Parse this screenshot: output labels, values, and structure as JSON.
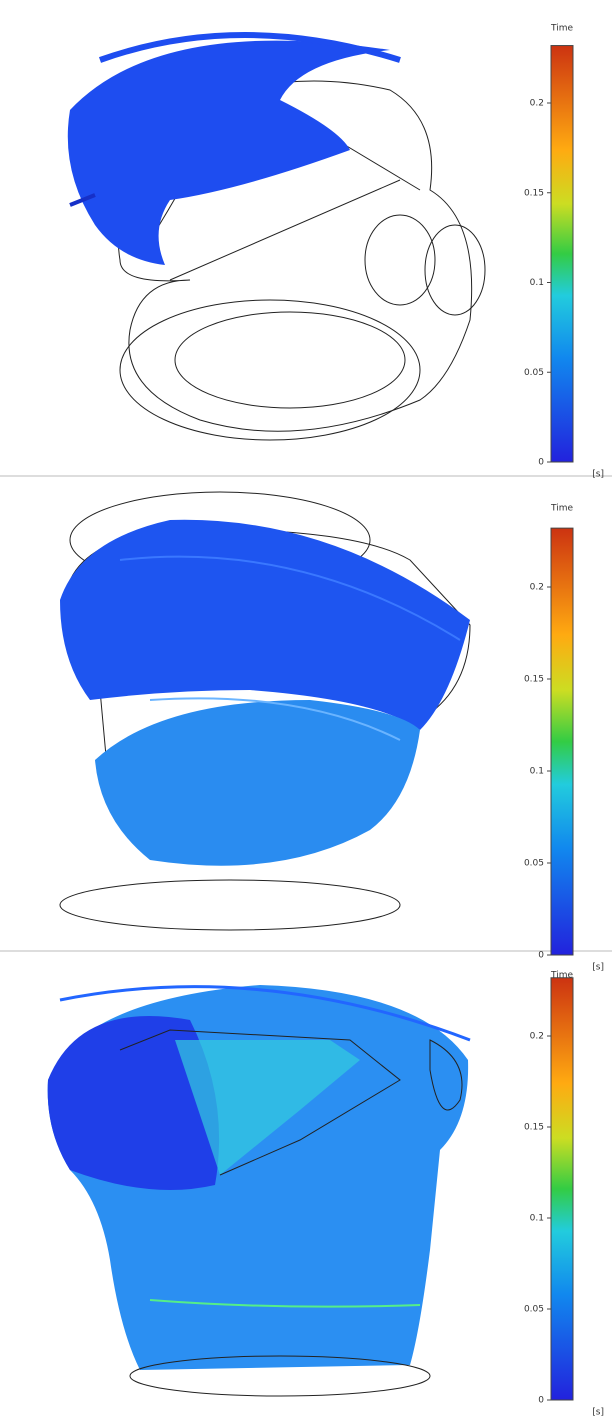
{
  "panels": [
    {
      "colorbar": {
        "title": "Time",
        "unit": "[s]",
        "range": [
          0,
          0.232
        ],
        "ticks": [
          0,
          0.05,
          0.1,
          0.15,
          0.2
        ]
      }
    },
    {
      "colorbar": {
        "title": "Time",
        "unit": "[s]",
        "range": [
          0,
          0.232
        ],
        "ticks": [
          0,
          0.05,
          0.1,
          0.15,
          0.2
        ]
      }
    },
    {
      "colorbar": {
        "title": "Time",
        "unit": "[s]",
        "range": [
          0,
          0.232
        ],
        "ticks": [
          0,
          0.05,
          0.1,
          0.15,
          0.2
        ]
      }
    }
  ]
}
